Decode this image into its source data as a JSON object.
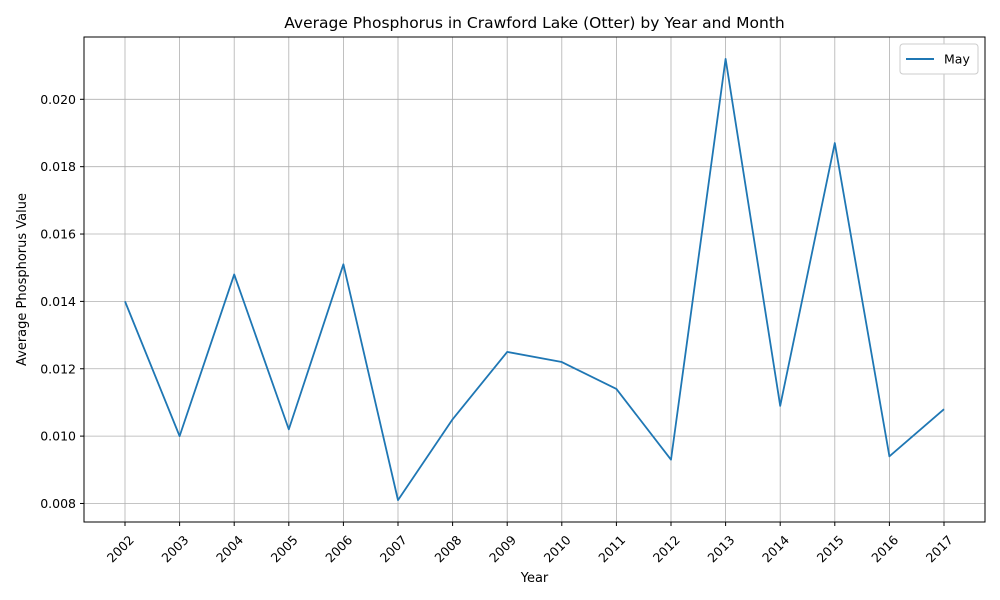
{
  "chart_data": {
    "type": "line",
    "title": "Average Phosphorus in Crawford Lake (Otter) by Year and Month",
    "xlabel": "Year",
    "ylabel": "Average Phosphorus Value",
    "x": [
      "2002",
      "2003",
      "2004",
      "2005",
      "2006",
      "2007",
      "2008",
      "2009",
      "2010",
      "2011",
      "2012",
      "2013",
      "2014",
      "2015",
      "2016",
      "2017"
    ],
    "series": [
      {
        "name": "May",
        "color": "#1f77b4",
        "values": [
          0.014,
          0.01,
          0.0148,
          0.0102,
          0.0151,
          0.0081,
          0.0105,
          0.0125,
          0.0122,
          0.0114,
          0.0093,
          0.0212,
          0.0109,
          0.0187,
          0.0094,
          0.0108
        ]
      }
    ],
    "ylim": [
      0.00745,
      0.02185
    ],
    "yticks": [
      "0.008",
      "0.010",
      "0.012",
      "0.014",
      "0.016",
      "0.018",
      "0.020"
    ],
    "grid": true,
    "legend_position": "top-right"
  }
}
